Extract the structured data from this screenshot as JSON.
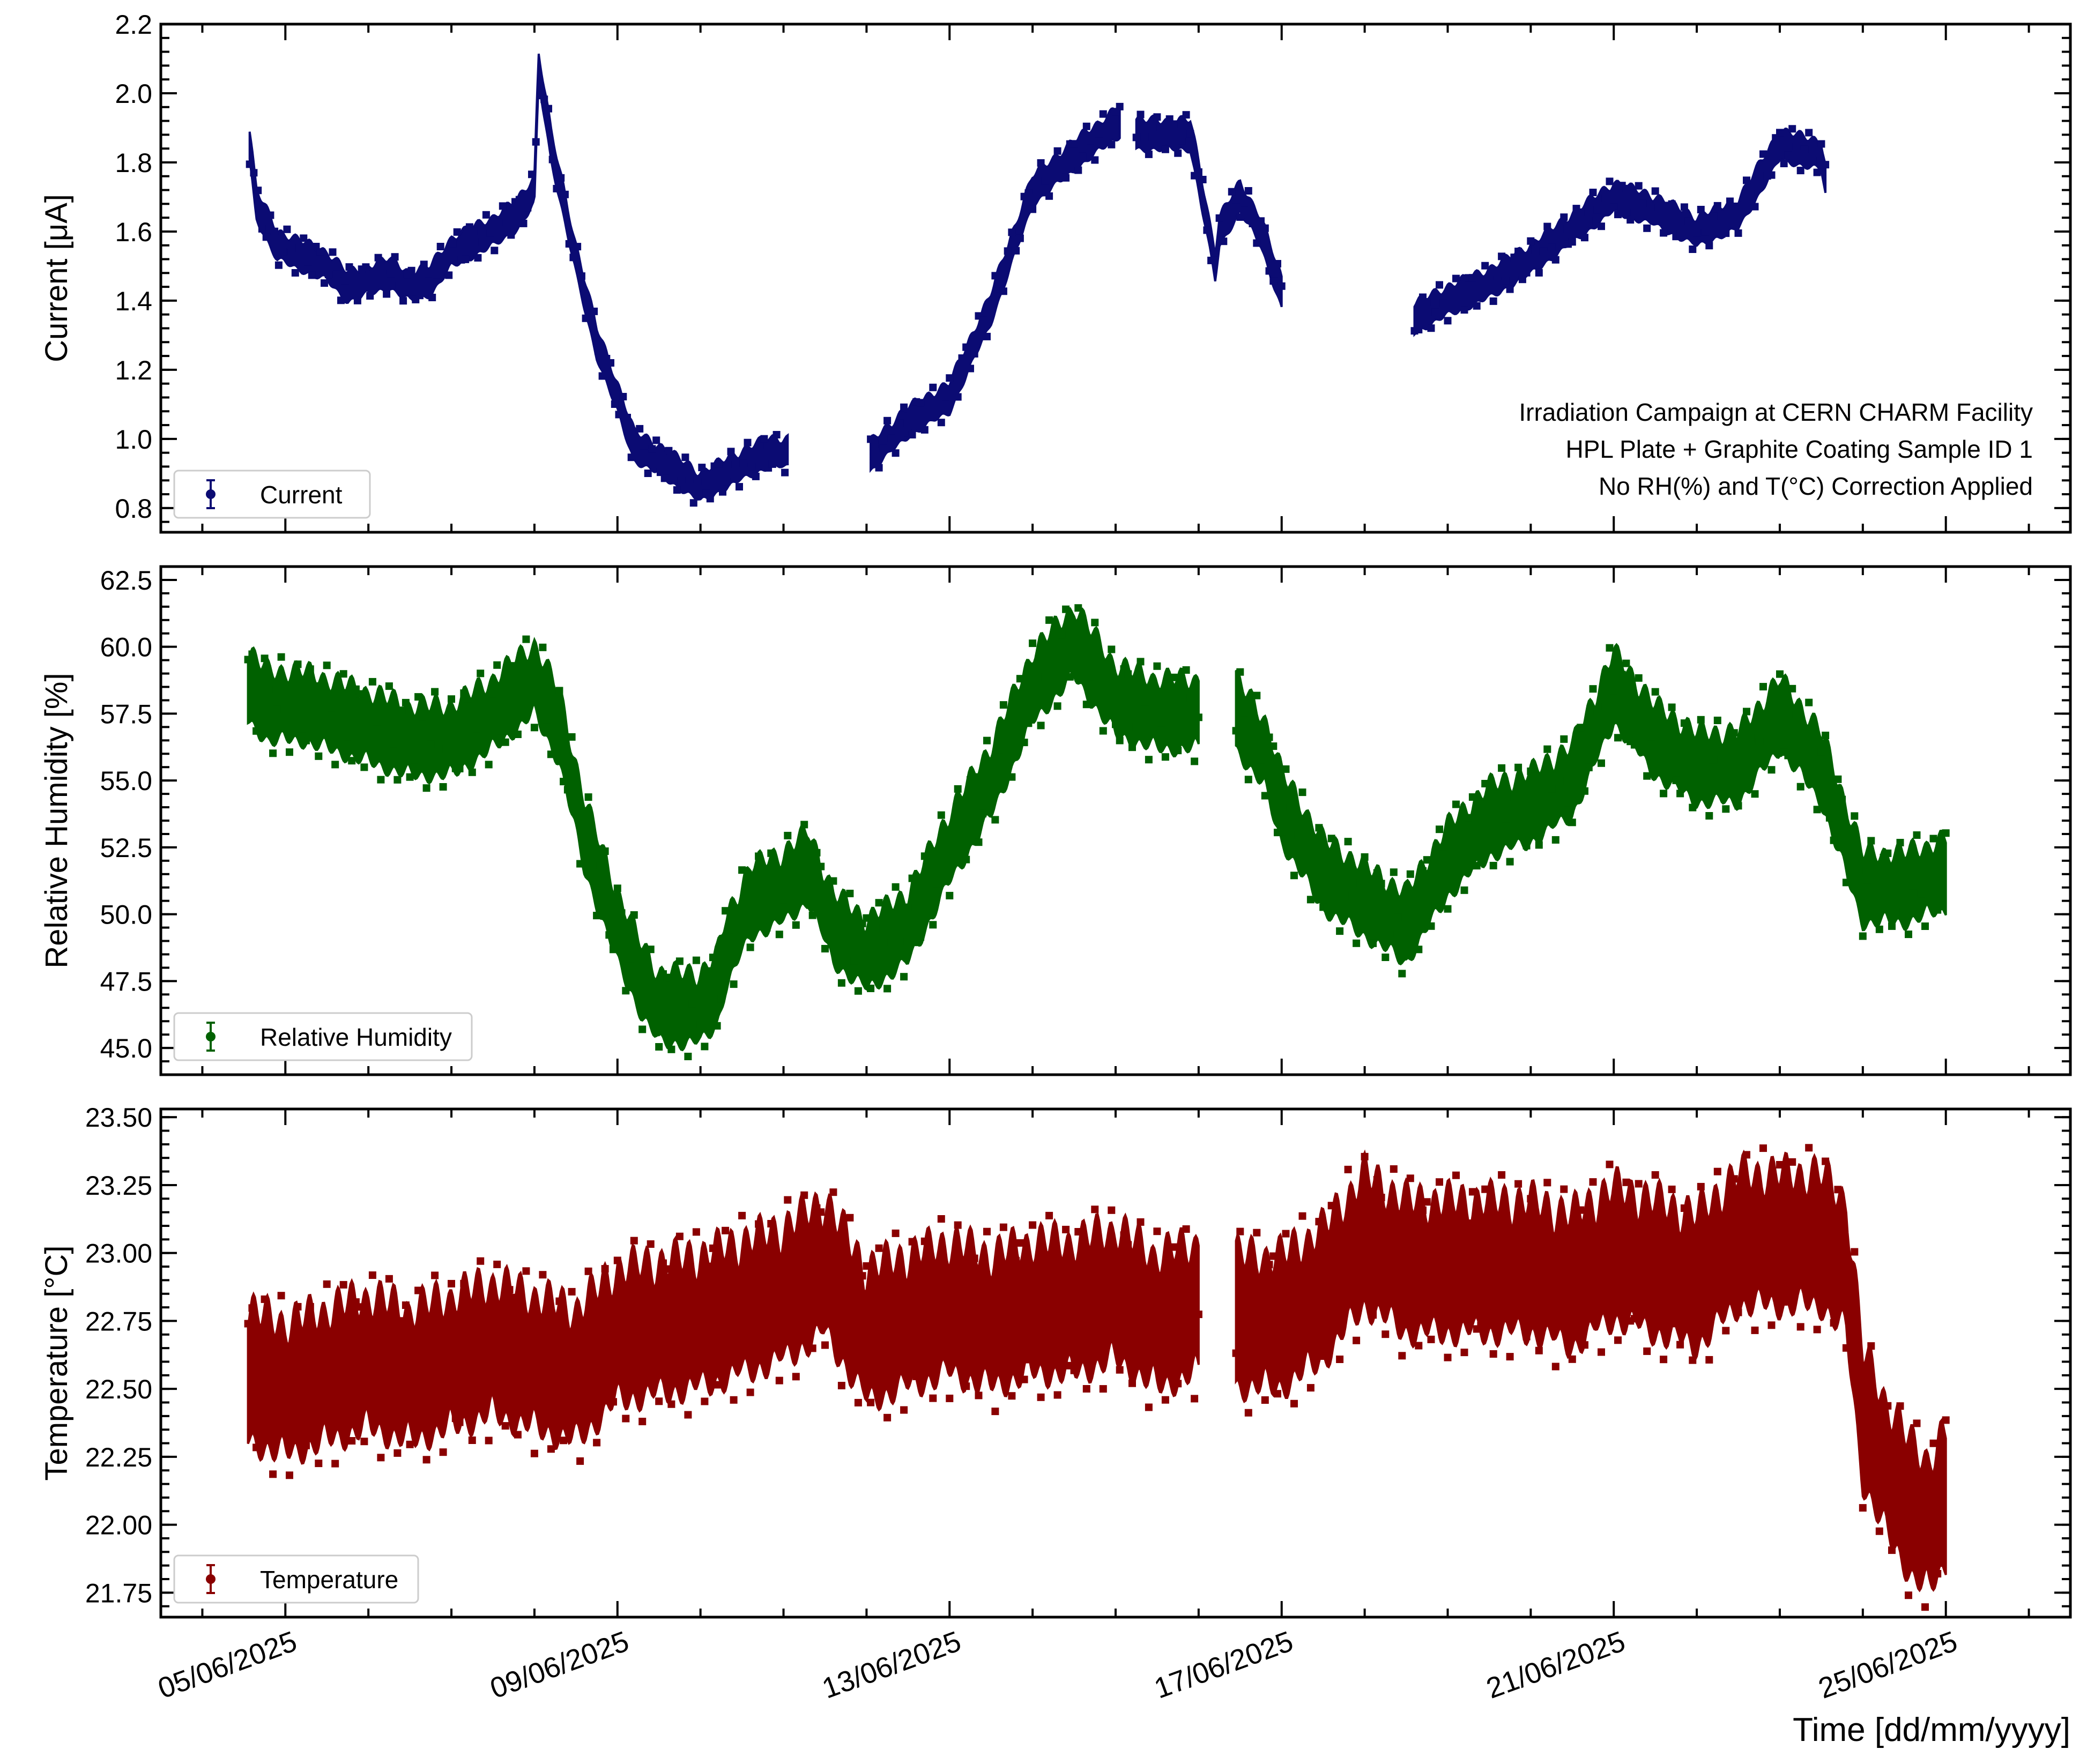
{
  "figure": {
    "xlabel": "Time [dd/mm/yyyy]",
    "colors": {
      "current": "#0b0b73",
      "humidity": "#006100",
      "temperature": "#8a0000",
      "axis": "#000000"
    }
  },
  "chart_data": [
    {
      "type": "scatter",
      "panel": "current",
      "ylabel": "Current [μA]",
      "legend": "Current",
      "legend_position": "bottom-left",
      "annotation": [
        "Irradiation Campaign at CERN CHARM Facility",
        "HPL Plate + Graphite Coating Sample ID 1",
        "No RH(%) and T(°C) Correction Applied"
      ],
      "ylim": [
        0.73,
        2.2
      ],
      "yticks": [
        0.8,
        1.0,
        1.2,
        1.4,
        1.6,
        1.8,
        2.0,
        2.2
      ],
      "ytick_labels": [
        "0.8",
        "1.0",
        "1.2",
        "1.4",
        "1.6",
        "1.8",
        "2.0",
        "2.2"
      ],
      "series": [
        {
          "name": "Current",
          "spread": 0.09,
          "segments": [
            [
              [
                4.57,
                1.85
              ],
              [
                4.65,
                1.68
              ],
              [
                4.9,
                1.56
              ],
              [
                5.5,
                1.5
              ],
              [
                5.75,
                1.44
              ],
              [
                6.25,
                1.48
              ],
              [
                6.5,
                1.44
              ],
              [
                6.75,
                1.46
              ],
              [
                7.0,
                1.54
              ],
              [
                7.5,
                1.6
              ],
              [
                7.8,
                1.65
              ],
              [
                8.0,
                1.72
              ],
              [
                8.05,
                2.08
              ],
              [
                8.2,
                1.85
              ],
              [
                8.5,
                1.52
              ],
              [
                8.75,
                1.28
              ],
              [
                9.0,
                1.12
              ],
              [
                9.2,
                0.98
              ],
              [
                9.5,
                0.94
              ],
              [
                10.0,
                0.86
              ],
              [
                10.3,
                0.9
              ],
              [
                10.8,
                0.96
              ],
              [
                11.05,
                0.96
              ]
            ],
            [
              [
                12.05,
                0.95
              ],
              [
                12.5,
                1.05
              ],
              [
                13.0,
                1.12
              ],
              [
                13.5,
                1.38
              ],
              [
                14.0,
                1.72
              ],
              [
                14.5,
                1.82
              ],
              [
                15.05,
                1.92
              ]
            ],
            [
              [
                15.25,
                1.88
              ],
              [
                15.9,
                1.88
              ],
              [
                16.0,
                1.76
              ],
              [
                16.2,
                1.5
              ],
              [
                16.25,
                1.6
              ],
              [
                16.5,
                1.7
              ],
              [
                16.75,
                1.6
              ],
              [
                17.0,
                1.42
              ]
            ],
            [
              [
                18.6,
                1.35
              ],
              [
                19.0,
                1.4
              ],
              [
                19.5,
                1.45
              ],
              [
                20.0,
                1.52
              ],
              [
                21.0,
                1.7
              ],
              [
                21.5,
                1.66
              ],
              [
                22.0,
                1.6
              ],
              [
                22.5,
                1.65
              ],
              [
                23.0,
                1.85
              ],
              [
                23.5,
                1.82
              ],
              [
                23.55,
                1.75
              ]
            ]
          ]
        }
      ]
    },
    {
      "type": "scatter",
      "panel": "humidity",
      "ylabel": "Relative Humidity [%]",
      "legend": "Relative Humidity",
      "legend_position": "bottom-left",
      "ylim": [
        44,
        63
      ],
      "yticks": [
        45.0,
        47.5,
        50.0,
        52.5,
        55.0,
        57.5,
        60.0,
        62.5
      ],
      "ytick_labels": [
        "45.0",
        "47.5",
        "50.0",
        "52.5",
        "55.0",
        "57.5",
        "60.0",
        "62.5"
      ],
      "series": [
        {
          "name": "Relative Humidity",
          "spread": 2.8,
          "segments": [
            [
              [
                4.55,
                58.5
              ],
              [
                4.8,
                57.8
              ],
              [
                5.2,
                57.8
              ],
              [
                5.5,
                57.5
              ],
              [
                6.0,
                57.0
              ],
              [
                6.5,
                56.5
              ],
              [
                7.0,
                56.5
              ],
              [
                7.5,
                57.5
              ],
              [
                8.0,
                58.8
              ],
              [
                8.3,
                57.0
              ],
              [
                8.6,
                53.0
              ],
              [
                9.0,
                49.5
              ],
              [
                9.3,
                47.5
              ],
              [
                9.5,
                46.5
              ],
              [
                10.0,
                46.5
              ],
              [
                10.2,
                47.2
              ],
              [
                10.3,
                48.5
              ],
              [
                10.6,
                50.5
              ],
              [
                11.0,
                51.0
              ],
              [
                11.3,
                51.8
              ],
              [
                11.6,
                49.5
              ],
              [
                12.0,
                48.5
              ],
              [
                12.5,
                49.5
              ],
              [
                13.0,
                52.5
              ],
              [
                13.5,
                55.0
              ],
              [
                14.0,
                58.5
              ],
              [
                14.5,
                60.2
              ],
              [
                15.0,
                58.0
              ],
              [
                15.5,
                57.5
              ],
              [
                16.0,
                57.5
              ]
            ],
            [
              [
                16.45,
                57.5
              ],
              [
                16.8,
                56.0
              ],
              [
                17.0,
                54.0
              ],
              [
                17.5,
                51.5
              ],
              [
                18.0,
                50.5
              ],
              [
                18.5,
                49.5
              ],
              [
                19.0,
                52.0
              ],
              [
                19.5,
                53.5
              ],
              [
                20.0,
                54.0
              ],
              [
                20.5,
                55.0
              ],
              [
                21.0,
                58.5
              ],
              [
                21.5,
                56.5
              ],
              [
                22.0,
                55.5
              ],
              [
                22.5,
                55.5
              ],
              [
                23.0,
                57.5
              ],
              [
                23.5,
                55.5
              ],
              [
                24.0,
                51.0
              ],
              [
                24.5,
                51.0
              ],
              [
                25.0,
                51.5
              ]
            ]
          ]
        }
      ]
    },
    {
      "type": "scatter",
      "panel": "temperature",
      "ylabel": "Temperature [°C]",
      "legend": "Temperature",
      "legend_position": "bottom-left",
      "ylim": [
        21.66,
        23.53
      ],
      "yticks": [
        21.75,
        22.0,
        22.25,
        22.5,
        22.75,
        23.0,
        23.25,
        23.5
      ],
      "ytick_labels": [
        "21.75",
        "22.00",
        "22.25",
        "22.50",
        "22.75",
        "23.00",
        "23.25",
        "23.50"
      ],
      "series": [
        {
          "name": "Temperature",
          "spread": 0.52,
          "segments": [
            [
              [
                4.55,
                22.55
              ],
              [
                5.0,
                22.5
              ],
              [
                5.5,
                22.55
              ],
              [
                6.0,
                22.6
              ],
              [
                6.5,
                22.55
              ],
              [
                7.0,
                22.6
              ],
              [
                7.5,
                22.65
              ],
              [
                8.0,
                22.6
              ],
              [
                8.5,
                22.55
              ],
              [
                9.0,
                22.7
              ],
              [
                10.0,
                22.75
              ],
              [
                10.5,
                22.8
              ],
              [
                11.0,
                22.85
              ],
              [
                11.5,
                22.95
              ],
              [
                12.0,
                22.7
              ],
              [
                12.5,
                22.75
              ],
              [
                13.0,
                22.8
              ],
              [
                13.5,
                22.75
              ],
              [
                14.0,
                22.8
              ],
              [
                14.5,
                22.8
              ],
              [
                15.0,
                22.85
              ],
              [
                15.5,
                22.75
              ],
              [
                16.0,
                22.8
              ]
            ],
            [
              [
                16.45,
                22.75
              ],
              [
                17.0,
                22.75
              ],
              [
                17.5,
                22.85
              ],
              [
                18.0,
                23.05
              ],
              [
                18.5,
                22.95
              ],
              [
                19.0,
                22.95
              ],
              [
                19.5,
                22.95
              ],
              [
                20.0,
                22.95
              ],
              [
                20.5,
                22.9
              ],
              [
                21.0,
                23.0
              ],
              [
                21.5,
                22.95
              ],
              [
                22.0,
                22.9
              ],
              [
                22.5,
                23.05
              ],
              [
                23.0,
                23.05
              ],
              [
                23.5,
                23.05
              ],
              [
                23.8,
                22.95
              ],
              [
                24.0,
                22.4
              ],
              [
                24.3,
                22.2
              ],
              [
                24.6,
                22.05
              ],
              [
                24.8,
                22.0
              ],
              [
                25.0,
                22.1
              ]
            ]
          ]
        }
      ]
    }
  ],
  "xaxis": {
    "unit": "day of June 2025",
    "xlim": [
      3.5,
      26.5
    ],
    "ticks": [
      5,
      9,
      13,
      17,
      21,
      25
    ],
    "tick_labels": [
      "05/06/2025",
      "09/06/2025",
      "13/06/2025",
      "17/06/2025",
      "21/06/2025",
      "25/06/2025"
    ]
  }
}
